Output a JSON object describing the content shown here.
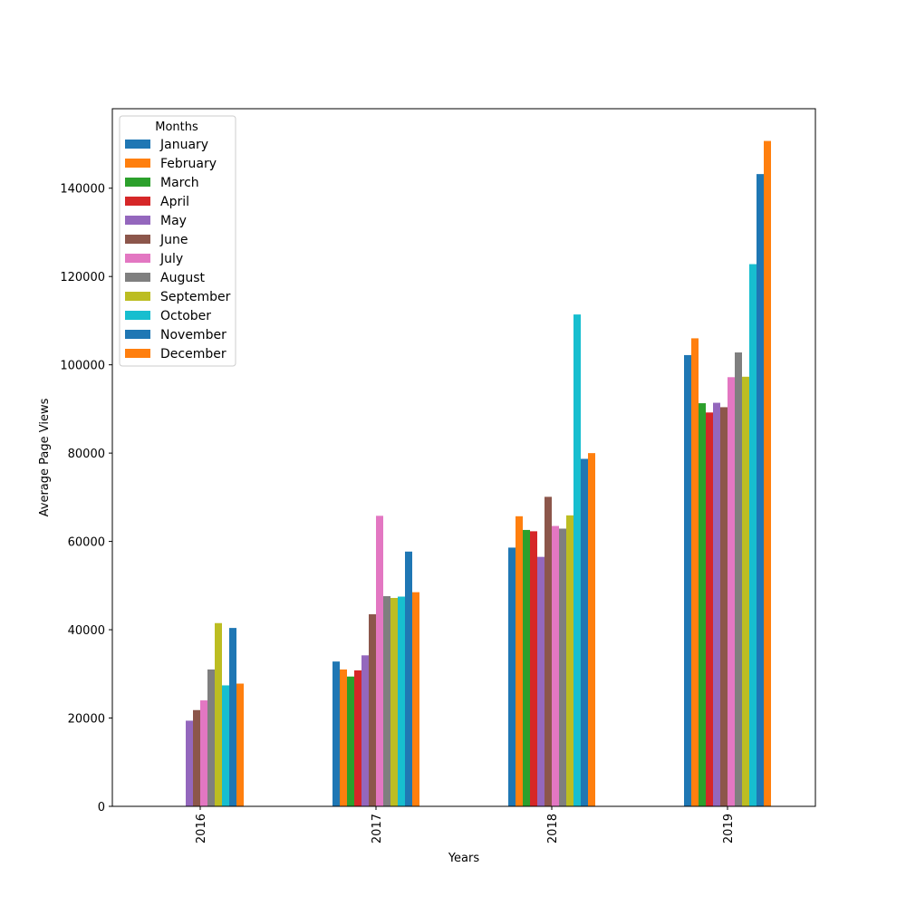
{
  "chart_data": {
    "type": "bar",
    "xlabel": "Years",
    "ylabel": "Average Page Views",
    "ylim": [
      0,
      158000
    ],
    "yticks": [
      0,
      20000,
      40000,
      60000,
      80000,
      100000,
      120000,
      140000
    ],
    "ytick_labels": [
      "0",
      "20000",
      "40000",
      "60000",
      "80000",
      "100000",
      "120000",
      "140000"
    ],
    "categories": [
      "2016",
      "2017",
      "2018",
      "2019"
    ],
    "legend": {
      "title": "Months",
      "placement": "top-left"
    },
    "grid": false,
    "series": [
      {
        "name": "January",
        "color": "#1f77b4",
        "values": [
          null,
          32800,
          58600,
          102200
        ]
      },
      {
        "name": "February",
        "color": "#ff7f0e",
        "values": [
          null,
          31000,
          65700,
          106000
        ]
      },
      {
        "name": "March",
        "color": "#2ca02c",
        "values": [
          null,
          29400,
          62600,
          91300
        ]
      },
      {
        "name": "April",
        "color": "#d62728",
        "values": [
          null,
          30800,
          62300,
          89200
        ]
      },
      {
        "name": "May",
        "color": "#9467bd",
        "values": [
          19400,
          34200,
          56500,
          91400
        ]
      },
      {
        "name": "June",
        "color": "#8c564b",
        "values": [
          21800,
          43500,
          70100,
          90400
        ]
      },
      {
        "name": "July",
        "color": "#e377c2",
        "values": [
          24000,
          65800,
          63500,
          97200
        ]
      },
      {
        "name": "August",
        "color": "#7f7f7f",
        "values": [
          31000,
          47600,
          62900,
          102800
        ]
      },
      {
        "name": "September",
        "color": "#bcbd22",
        "values": [
          41500,
          47200,
          65900,
          97300
        ]
      },
      {
        "name": "October",
        "color": "#17becf",
        "values": [
          27400,
          47500,
          111400,
          122800
        ]
      },
      {
        "name": "November",
        "color": "#1f77b4",
        "values": [
          40400,
          57700,
          78700,
          143200
        ]
      },
      {
        "name": "December",
        "color": "#ff7f0e",
        "values": [
          27800,
          48500,
          80000,
          150700
        ]
      }
    ]
  }
}
